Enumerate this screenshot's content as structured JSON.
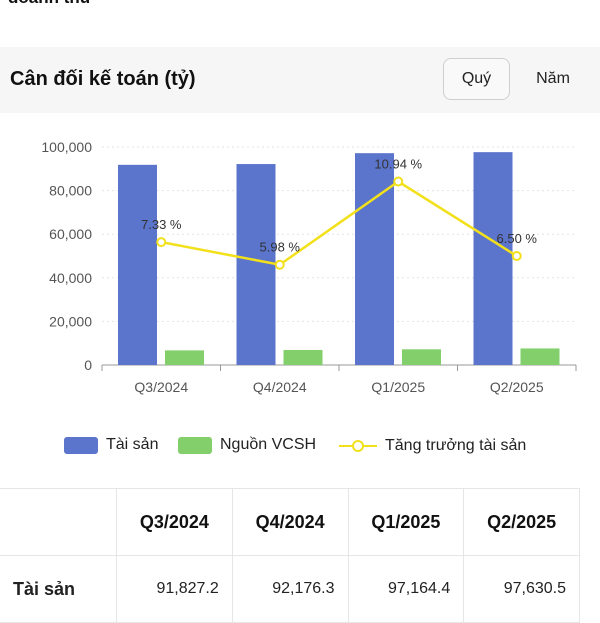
{
  "top_partial_text": "doanh thu",
  "title": "Cân đối kế toán (tỷ)",
  "period_buttons": {
    "quarter": "Quý",
    "year": "Năm"
  },
  "colors": {
    "assets": "#5b74cc",
    "equity": "#82cf6c",
    "growth": "#f2e01b"
  },
  "chart_data": {
    "type": "bar",
    "categories": [
      "Q3/2024",
      "Q4/2024",
      "Q1/2025",
      "Q2/2025"
    ],
    "series": [
      {
        "name": "Tài sản",
        "type": "bar",
        "values": [
          91827.2,
          92176.3,
          97164.4,
          97630.5
        ]
      },
      {
        "name": "Nguồn VCSH",
        "type": "bar",
        "values": [
          6700,
          6900,
          7200,
          7600
        ]
      },
      {
        "name": "Tăng trưởng tài sản",
        "type": "line",
        "values": [
          7.33,
          5.98,
          10.94,
          6.5
        ],
        "labels": [
          "7.33 %",
          "5.98 %",
          "10.94 %",
          "6.50 %"
        ]
      }
    ],
    "y_ticks": [
      "0",
      "20,000",
      "40,000",
      "60,000",
      "80,000",
      "100,000"
    ],
    "ylim": [
      0,
      100000
    ],
    "growth_range": [
      0,
      13
    ],
    "grid": true,
    "legend": "bottom"
  },
  "legend": {
    "assets": "Tài sản",
    "equity": "Nguồn VCSH",
    "growth": "Tăng trưởng tài sản"
  },
  "table": {
    "headers": [
      "",
      "Q3/2024",
      "Q4/2024",
      "Q1/2025",
      "Q2/2025"
    ],
    "rows": [
      {
        "label": "Tài sản",
        "values": [
          "91,827.2",
          "92,176.3",
          "97,164.4",
          "97,630.5"
        ]
      }
    ]
  }
}
